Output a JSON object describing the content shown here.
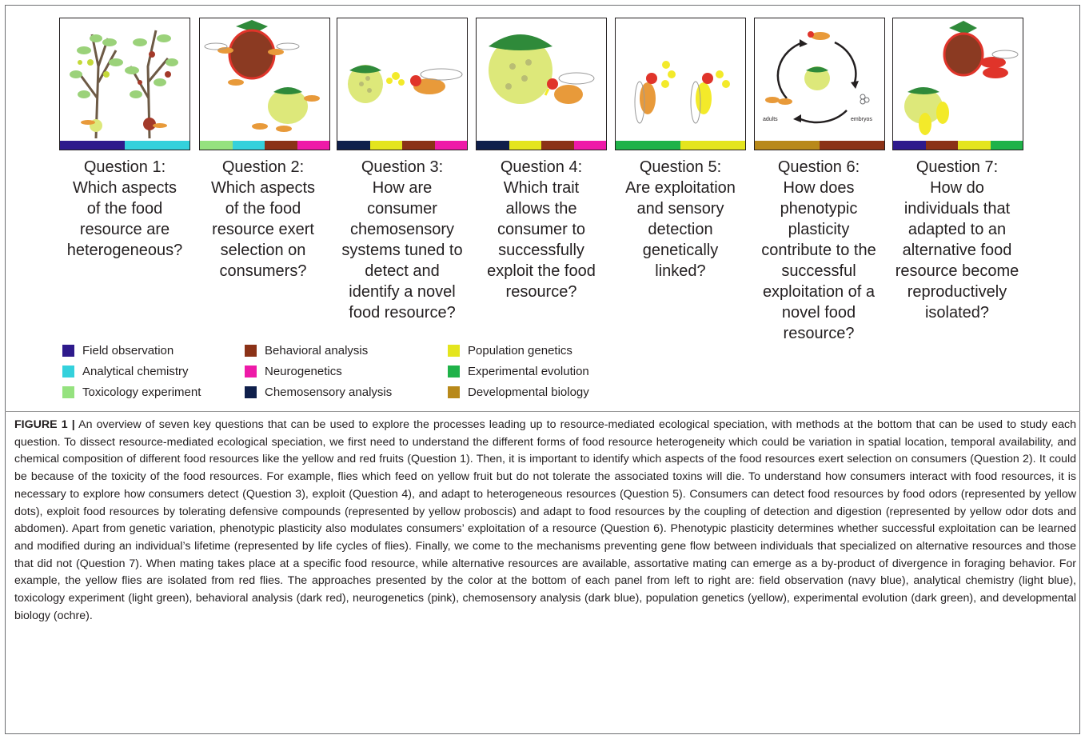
{
  "colors": {
    "field_observation": "#2e1a8c",
    "analytical_chemistry": "#34d1dc",
    "toxicology_experiment": "#95e27f",
    "behavioral_analysis": "#8b3217",
    "neurogenetics": "#ee1aa8",
    "chemosensory_analysis": "#0f1f4b",
    "population_genetics": "#e4e51e",
    "experimental_evolution": "#1fb249",
    "developmental_biology": "#b8891a"
  },
  "panels": [
    {
      "bars": [
        "field_observation",
        "analytical_chemistry"
      ],
      "art": "trees-icon"
    },
    {
      "bars": [
        "toxicology_experiment",
        "analytical_chemistry",
        "behavioral_analysis",
        "neurogenetics"
      ],
      "art": "fruits-flies-icon"
    },
    {
      "bars": [
        "chemosensory_analysis",
        "population_genetics",
        "behavioral_analysis",
        "neurogenetics"
      ],
      "art": "odor-fly-icon"
    },
    {
      "bars": [
        "chemosensory_analysis",
        "population_genetics",
        "behavioral_analysis",
        "neurogenetics"
      ],
      "art": "fly-feeding-icon"
    },
    {
      "bars": [
        "experimental_evolution",
        "population_genetics"
      ],
      "art": "two-flies-icon"
    },
    {
      "bars": [
        "developmental_biology",
        "behavioral_analysis"
      ],
      "art": "life-cycle-icon",
      "labels": {
        "adults": "adults",
        "embryos": "embryos"
      }
    },
    {
      "bars": [
        "field_observation",
        "behavioral_analysis",
        "population_genetics",
        "experimental_evolution"
      ],
      "art": "mating-flies-icon"
    }
  ],
  "questions": [
    {
      "lines": [
        "Question 1:",
        "Which aspects",
        "of the food",
        "resource are",
        "heterogeneous?"
      ]
    },
    {
      "lines": [
        "Question 2:",
        "Which aspects",
        "of the food",
        "resource exert",
        "selection on",
        "consumers?"
      ]
    },
    {
      "lines": [
        "Question 3:",
        "How are",
        "consumer",
        "chemosensory",
        "systems tuned to",
        "detect and",
        "identify a novel",
        "food resource?"
      ]
    },
    {
      "lines": [
        "Question 4:",
        "Which trait",
        "allows the",
        "consumer to",
        "successfully",
        "exploit the food",
        "resource?"
      ]
    },
    {
      "lines": [
        "Question 5:",
        "Are exploitation",
        "and sensory",
        "detection",
        "genetically",
        "linked?"
      ]
    },
    {
      "lines": [
        "Question 6:",
        "How does",
        "phenotypic",
        "plasticity",
        "contribute to the",
        "successful",
        "exploitation of a",
        "novel food",
        "resource?"
      ]
    },
    {
      "lines": [
        "Question 7:",
        "How do",
        "individuals that",
        "adapted to an",
        "alternative food",
        "resource become",
        "reproductively",
        "isolated?"
      ]
    }
  ],
  "legend": [
    {
      "key": "field_observation",
      "label": "Field observation"
    },
    {
      "key": "analytical_chemistry",
      "label": "Analytical chemistry"
    },
    {
      "key": "toxicology_experiment",
      "label": "Toxicology experiment"
    },
    {
      "key": "behavioral_analysis",
      "label": "Behavioral analysis"
    },
    {
      "key": "neurogenetics",
      "label": "Neurogenetics"
    },
    {
      "key": "chemosensory_analysis",
      "label": "Chemosensory analysis"
    },
    {
      "key": "population_genetics",
      "label": "Population genetics"
    },
    {
      "key": "experimental_evolution",
      "label": "Experimental evolution"
    },
    {
      "key": "developmental_biology",
      "label": "Developmental biology"
    }
  ],
  "caption": {
    "label": "FIGURE 1 |",
    "text": "An overview of seven key questions that can be used to explore the processes leading up to resource-mediated ecological speciation, with methods at the bottom that can be used to study each question. To dissect resource-mediated ecological speciation, we first need to understand the different forms of food resource heterogeneity which could be variation in spatial location, temporal availability, and chemical composition of different food resources like the yellow and red fruits (Question 1). Then, it is important to identify which aspects of the food resources exert selection on consumers (Question 2). It could be because of the toxicity of the food resources. For example, flies which feed on yellow fruit but do not tolerate the associated toxins will die. To understand how consumers interact with food resources, it is necessary to explore how consumers detect (Question 3), exploit (Question 4), and adapt to heterogeneous resources (Question 5). Consumers can detect food resources by food odors (represented by yellow dots), exploit food resources by tolerating defensive compounds (represented by yellow proboscis) and adapt to food resources by the coupling of detection and digestion (represented by yellow odor dots and abdomen). Apart from genetic variation, phenotypic plasticity also modulates consumers’ exploitation of a resource (Question 6). Phenotypic plasticity determines whether successful exploitation can be learned and modified during an individual’s lifetime (represented by life cycles of flies). Finally, we come to the mechanisms preventing gene flow between individuals that specialized on alternative resources and those that did not (Question 7). When mating takes place at a specific food resource, while alternative resources are available, assortative mating can emerge as a by-product of divergence in foraging behavior. For example, the yellow flies are isolated from red flies. The approaches presented by the color at the bottom of each panel from left to right are: field observation (navy blue), analytical chemistry (light blue), toxicology experiment (light green), behavioral analysis (dark red), neurogenetics (pink), chemosensory analysis (dark blue), population genetics (yellow), experimental evolution (dark green), and developmental biology (ochre)."
  }
}
